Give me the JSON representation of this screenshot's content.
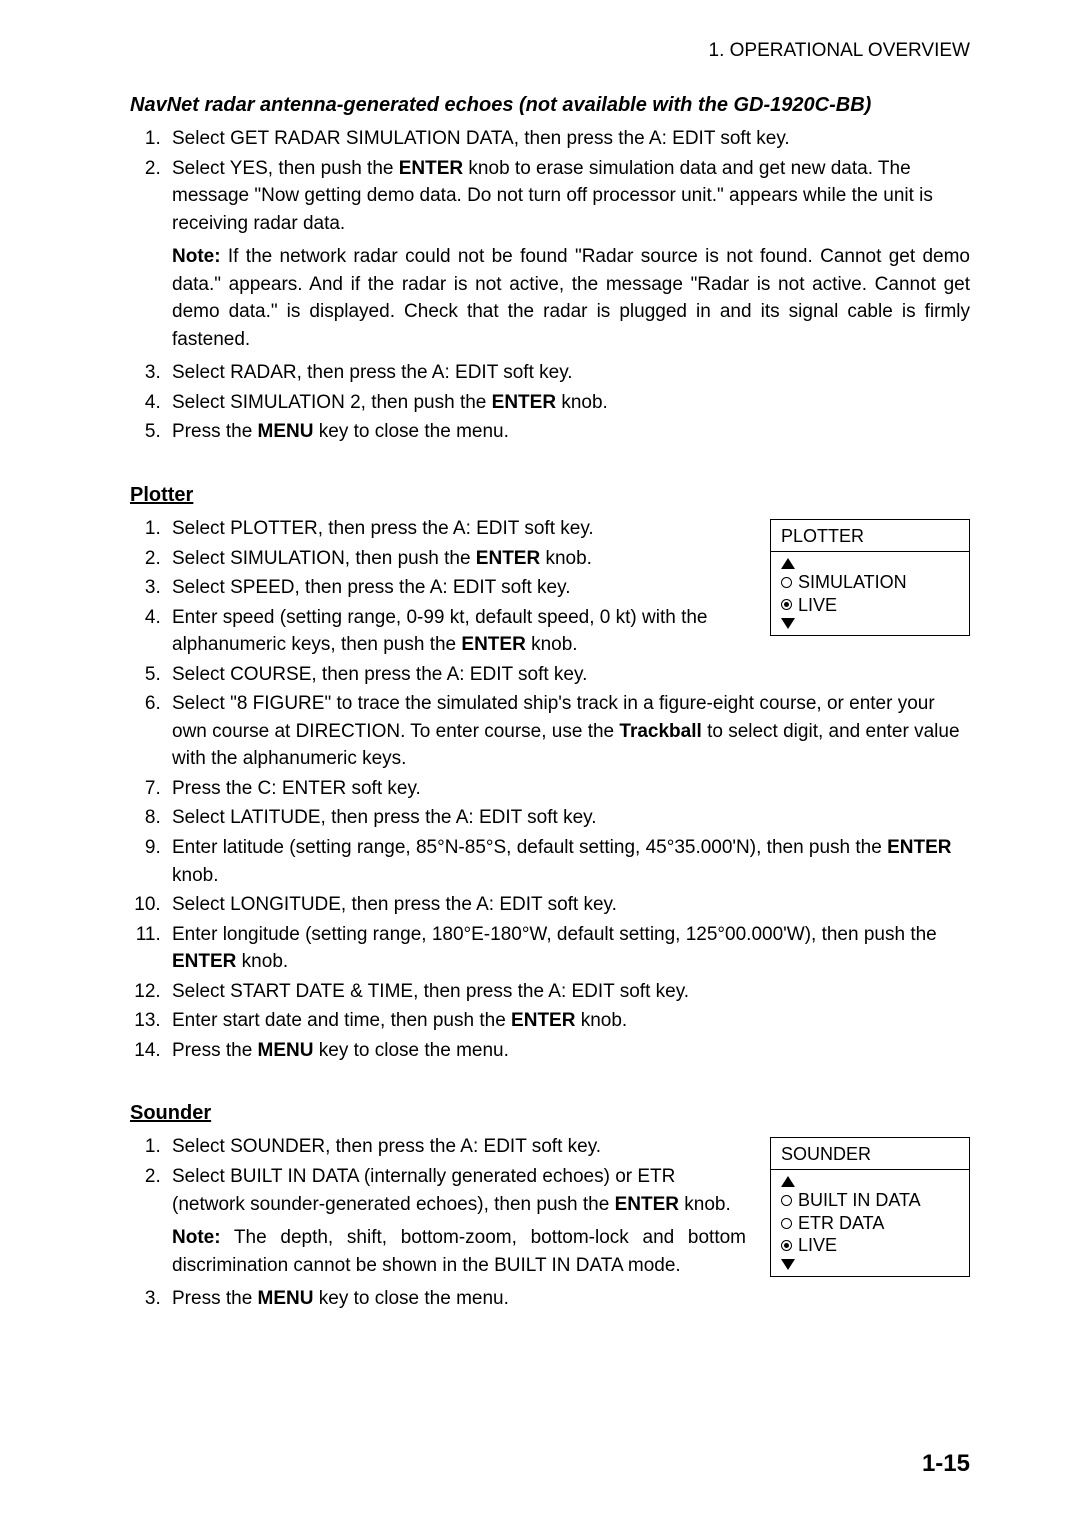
{
  "header": "1. OPERATIONAL OVERVIEW",
  "page_number": "1-15",
  "sec1": {
    "title": "NavNet radar antenna-generated echoes (not available with the GD-1920C-BB)",
    "items": [
      {
        "pre": "Select GET RADAR SIMULATION DATA, then press the A: EDIT soft key."
      },
      {
        "pre": "Select YES, then push the ",
        "b1": "ENTER",
        "post": " knob to erase simulation data and get new data. The message \"Now getting demo data. Do not turn off processor unit.\" appears while the unit is receiving radar data.",
        "note_b": "Note:",
        "note": " If the network radar could not be found \"Radar source is not found. Cannot get demo data.\" appears. And if the radar is not active, the message \"Radar is not active. Cannot get demo data.\" is displayed. Check that the radar is plugged in and its signal cable is firmly fastened."
      },
      {
        "pre": "Select RADAR, then press the A: EDIT soft key."
      },
      {
        "pre": "Select SIMULATION 2, then push the ",
        "b1": "ENTER",
        "post": " knob."
      },
      {
        "pre": "Press the ",
        "b1": "MENU",
        "post": " key to close the menu."
      }
    ]
  },
  "sec2": {
    "title": "Plotter",
    "left": [
      {
        "pre": "Select PLOTTER, then press the A: EDIT soft key."
      },
      {
        "pre": "Select SIMULATION, then push the ",
        "b1": "ENTER",
        "post": " knob."
      },
      {
        "pre": "Select SPEED, then press the A: EDIT soft key."
      },
      {
        "pre": "Enter speed (setting range, 0-99 kt, default speed, 0 kt) with the alphanumeric keys, then push the ",
        "b1": "ENTER",
        "post": " knob."
      },
      {
        "pre": "Select COURSE, then press the A: EDIT soft key."
      }
    ],
    "rest": [
      {
        "pre": "Select \"8 FIGURE\" to trace the simulated ship's track in a figure-eight course, or enter your own course at DIRECTION. To enter course, use the ",
        "b1": "Trackball",
        "post": " to select digit, and enter value with the alphanumeric keys."
      },
      {
        "pre": "Press the C: ENTER soft key."
      },
      {
        "pre": "Select LATITUDE, then press the A: EDIT soft key."
      },
      {
        "pre": "Enter latitude (setting range, 85°N-85°S, default setting, 45°35.000'N), then push the ",
        "b1": "ENTER",
        "post": " knob."
      },
      {
        "pre": "Select LONGITUDE, then press the A: EDIT soft key."
      },
      {
        "pre": "Enter longitude (setting range, 180°E-180°W, default setting, 125°00.000'W), then push the ",
        "b1": "ENTER",
        "post": " knob."
      },
      {
        "pre": "Select START DATE & TIME, then press the A: EDIT soft key."
      },
      {
        "pre": "Enter start date and time, then push the ",
        "b1": "ENTER",
        "post": " knob."
      },
      {
        "pre": "Press the ",
        "b1": "MENU",
        "post": " key to close the menu."
      }
    ],
    "box": {
      "title": "PLOTTER",
      "opts": [
        {
          "label": "SIMULATION",
          "sel": false
        },
        {
          "label": "LIVE",
          "sel": true
        }
      ]
    }
  },
  "sec3": {
    "title": "Sounder",
    "items": [
      {
        "pre": "Select SOUNDER, then press the A: EDIT soft key."
      },
      {
        "pre": "Select BUILT IN DATA (internally generated echoes) or ETR (network sounder-generated echoes), then push the ",
        "b1": "ENTER",
        "post": " knob.",
        "note_b": "Note:",
        "note": " The depth, shift, bottom-zoom, bottom-lock and bottom discrimination cannot be shown in the BUILT IN DATA mode."
      },
      {
        "pre": "Press the ",
        "b1": "MENU",
        "post": " key to close the menu."
      }
    ],
    "box": {
      "title": "SOUNDER",
      "opts": [
        {
          "label": "BUILT IN DATA",
          "sel": false
        },
        {
          "label": "ETR DATA",
          "sel": false
        },
        {
          "label": "LIVE",
          "sel": true
        }
      ]
    }
  }
}
